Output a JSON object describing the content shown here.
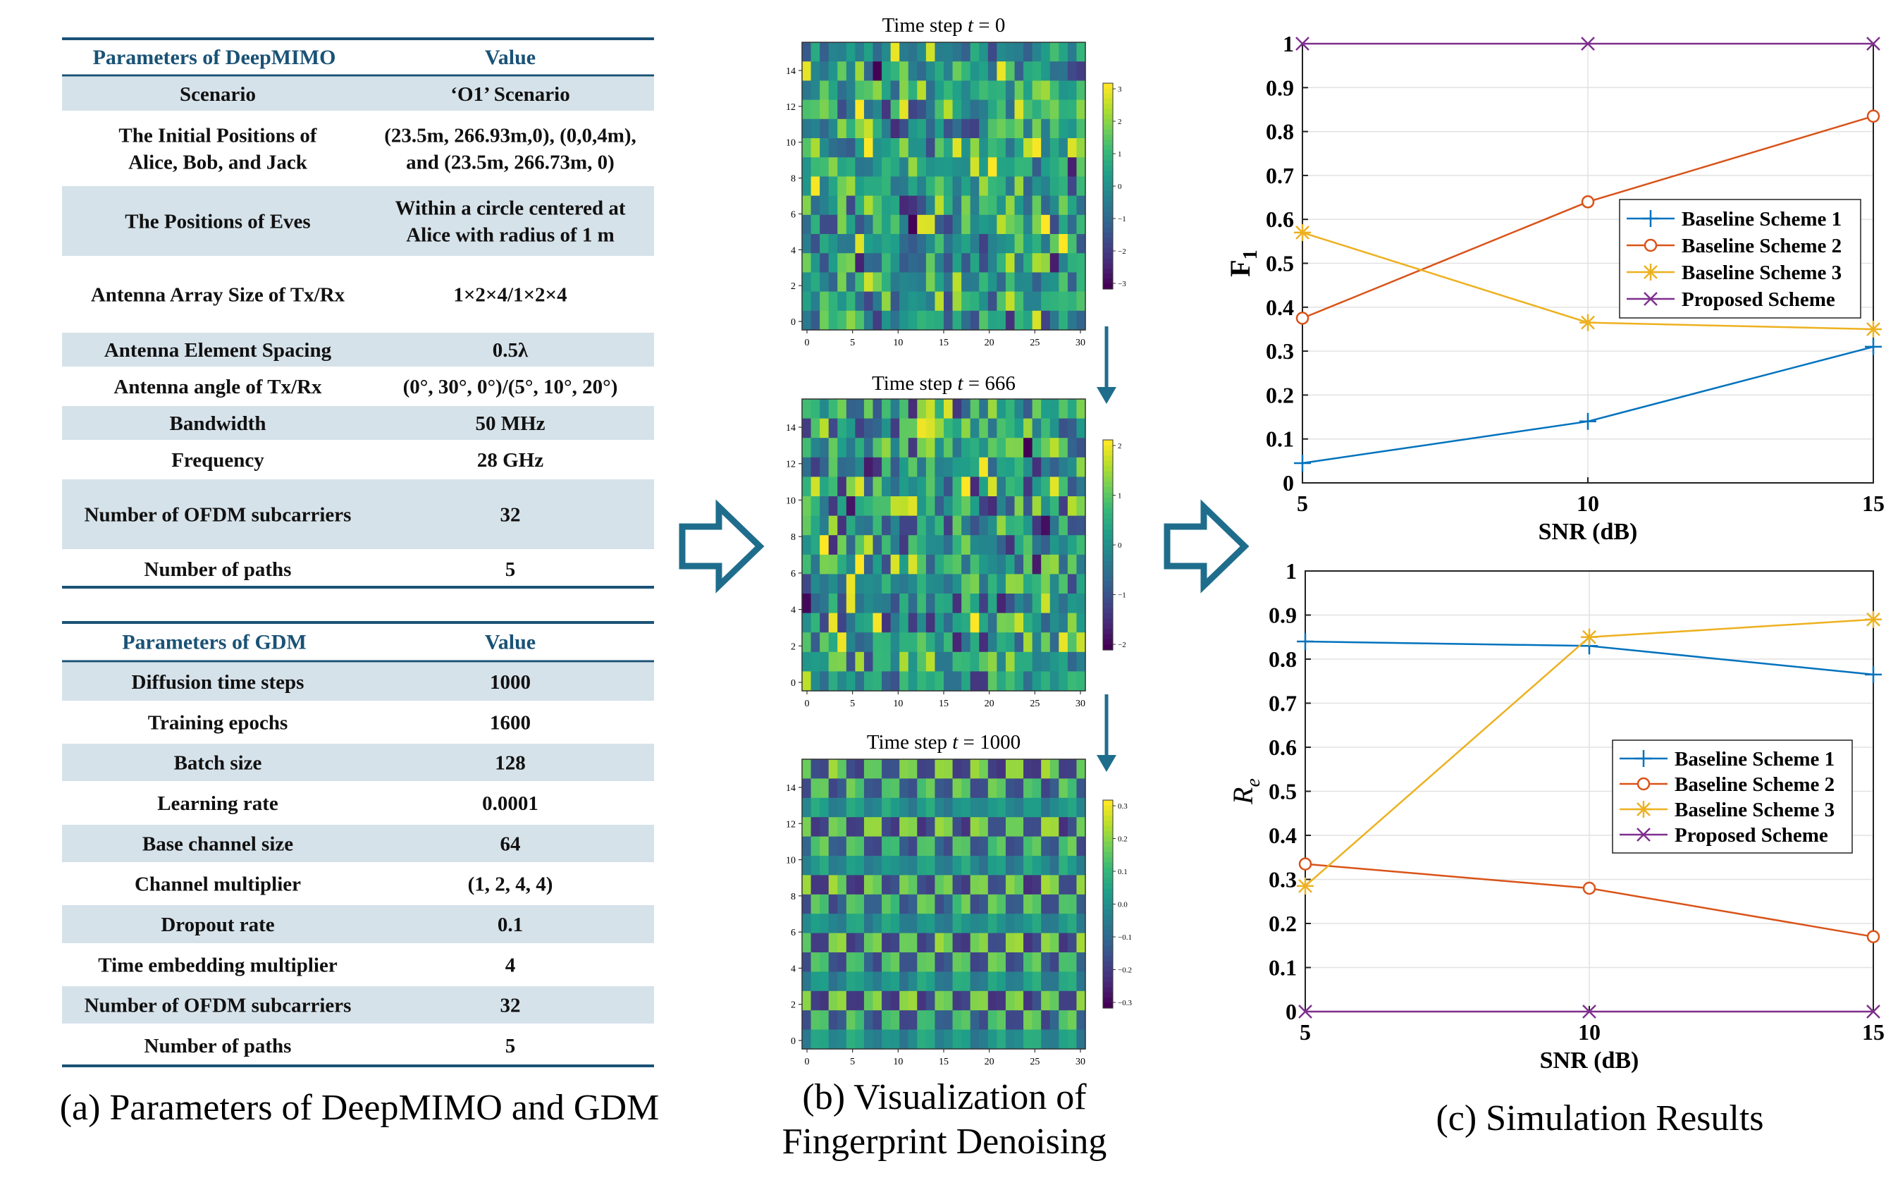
{
  "panel_a": {
    "table1": {
      "header": [
        "Parameters of DeepMIMO",
        "Value"
      ],
      "rows": [
        {
          "param": [
            "Scenario"
          ],
          "value": [
            "‘O1’ Scenario"
          ],
          "shaded": true
        },
        {
          "param": [
            "The Initial Positions of",
            "Alice, Bob, and Jack"
          ],
          "value": [
            "(23.5m, 266.93m,0), (0,0,4m),",
            "and (23.5m, 266.73m, 0)"
          ],
          "shaded": false
        },
        {
          "param": [
            "The Positions of Eves"
          ],
          "value": [
            "Within a circle centered at",
            "Alice with radius of 1 m"
          ],
          "shaded": true
        },
        {
          "param": [
            "Antenna Array Size of Tx/Rx"
          ],
          "value": [
            "1×2×4/1×2×4"
          ],
          "shaded": false
        },
        {
          "param": [
            "Antenna Element Spacing"
          ],
          "value": [
            "0.5λ"
          ],
          "shaded": true
        },
        {
          "param": [
            "Antenna angle of Tx/Rx"
          ],
          "value": [
            "(0°, 30°, 0°)/(5°, 10°, 20°)"
          ],
          "shaded": false
        },
        {
          "param": [
            "Bandwidth"
          ],
          "value": [
            "50 MHz"
          ],
          "shaded": true
        },
        {
          "param": [
            "Frequency"
          ],
          "value": [
            "28 GHz"
          ],
          "shaded": false
        },
        {
          "param": [
            "Number of OFDM subcarriers"
          ],
          "value": [
            "32"
          ],
          "shaded": true
        },
        {
          "param": [
            "Number of paths"
          ],
          "value": [
            "5"
          ],
          "shaded": false
        }
      ]
    },
    "table2": {
      "header": [
        "Parameters of GDM",
        "Value"
      ],
      "rows": [
        {
          "param": [
            "Diffusion time steps"
          ],
          "value": [
            "1000"
          ],
          "shaded": true
        },
        {
          "param": [
            "Training epochs"
          ],
          "value": [
            "1600"
          ],
          "shaded": false
        },
        {
          "param": [
            "Batch size"
          ],
          "value": [
            "128"
          ],
          "shaded": true
        },
        {
          "param": [
            "Learning rate"
          ],
          "value": [
            "0.0001"
          ],
          "shaded": false
        },
        {
          "param": [
            "Base channel size"
          ],
          "value": [
            "64"
          ],
          "shaded": true
        },
        {
          "param": [
            "Channel multiplier"
          ],
          "value": [
            "(1, 2, 4, 4)"
          ],
          "shaded": false
        },
        {
          "param": [
            "Dropout rate"
          ],
          "value": [
            "0.1"
          ],
          "shaded": true
        },
        {
          "param": [
            "Time embedding multiplier"
          ],
          "value": [
            "4"
          ],
          "shaded": false
        },
        {
          "param": [
            "Number of OFDM subcarriers"
          ],
          "value": [
            "32"
          ],
          "shaded": true
        },
        {
          "param": [
            "Number of paths"
          ],
          "value": [
            "5"
          ],
          "shaded": false
        }
      ]
    },
    "caption": "(a) Parameters of DeepMIMO and GDM"
  },
  "panel_b": {
    "caption_line1": "(b) Visualization of",
    "caption_line2": "Fingerprint Denoising",
    "heatmaps": [
      {
        "title_prefix": "Time step ",
        "title_var": "t",
        "title_suffix": " = 0",
        "yticks": [
          "14",
          "12",
          "10",
          "8",
          "6",
          "4",
          "2",
          "0"
        ],
        "xticks": [
          "0",
          "5",
          "10",
          "15",
          "20",
          "25",
          "30"
        ],
        "cbar_ticks": [
          "3",
          "2",
          "1",
          "0",
          "−1",
          "−2",
          "−3"
        ],
        "pattern": "noise",
        "seed": 11
      },
      {
        "title_prefix": "Time step ",
        "title_var": "t",
        "title_suffix": " = 666",
        "yticks": [
          "14",
          "12",
          "10",
          "8",
          "6",
          "4",
          "2",
          "0"
        ],
        "xticks": [
          "0",
          "5",
          "10",
          "15",
          "20",
          "25",
          "30"
        ],
        "cbar_ticks": [
          "2",
          "1",
          "0",
          "−1",
          "−2"
        ],
        "pattern": "noise",
        "seed": 29
      },
      {
        "title_prefix": "Time step ",
        "title_var": "t",
        "title_suffix": " = 1000",
        "yticks": [
          "14",
          "12",
          "10",
          "8",
          "6",
          "4",
          "2",
          "0"
        ],
        "xticks": [
          "0",
          "5",
          "10",
          "15",
          "20",
          "25",
          "30"
        ],
        "cbar_ticks": [
          "0.3",
          "0.2",
          "0.1",
          "0.0",
          "−0.1",
          "−0.2",
          "−0.3"
        ],
        "pattern": "structured",
        "seed": 7
      }
    ],
    "colors": {
      "arrow": "#1f6d8c"
    }
  },
  "panel_c": {
    "caption": "(c) Simulation Results",
    "colors": {
      "s1": "#0072bd",
      "s2": "#d95319",
      "s3": "#edb120",
      "s4": "#7e2f8e",
      "arrow": "#1f6d8c"
    }
  },
  "chart_data": [
    {
      "type": "line",
      "title": "",
      "xlabel": "SNR (dB)",
      "ylabel": "F1",
      "x": [
        5,
        10,
        15
      ],
      "xticks": [
        "5",
        "10",
        "15"
      ],
      "yticks": [
        "0",
        "0.1",
        "0.2",
        "0.3",
        "0.4",
        "0.5",
        "0.6",
        "0.7",
        "0.8",
        "0.9",
        "1"
      ],
      "xlim": [
        5,
        15
      ],
      "ylim": [
        0,
        1
      ],
      "grid": true,
      "legend_position": "right-middle",
      "series": [
        {
          "name": "Baseline Scheme 1",
          "values": [
            0.045,
            0.14,
            0.31
          ],
          "marker": "plus"
        },
        {
          "name": "Baseline Scheme 2",
          "values": [
            0.375,
            0.64,
            0.835
          ],
          "marker": "circle"
        },
        {
          "name": "Baseline Scheme 3",
          "values": [
            0.57,
            0.365,
            0.35
          ],
          "marker": "asterisk"
        },
        {
          "name": "Proposed Scheme",
          "values": [
            1.0,
            1.0,
            1.0
          ],
          "marker": "cross"
        }
      ]
    },
    {
      "type": "line",
      "title": "",
      "xlabel": "SNR (dB)",
      "ylabel": "Re",
      "x": [
        5,
        10,
        15
      ],
      "xticks": [
        "5",
        "10",
        "15"
      ],
      "yticks": [
        "0",
        "0.1",
        "0.2",
        "0.3",
        "0.4",
        "0.5",
        "0.6",
        "0.7",
        "0.8",
        "0.9",
        "1"
      ],
      "xlim": [
        5,
        15
      ],
      "ylim": [
        0,
        1
      ],
      "grid": true,
      "legend_position": "right-middle",
      "series": [
        {
          "name": "Baseline Scheme 1",
          "values": [
            0.84,
            0.83,
            0.765
          ],
          "marker": "plus"
        },
        {
          "name": "Baseline Scheme 2",
          "values": [
            0.335,
            0.28,
            0.17
          ],
          "marker": "circle"
        },
        {
          "name": "Baseline Scheme 3",
          "values": [
            0.285,
            0.85,
            0.89
          ],
          "marker": "asterisk"
        },
        {
          "name": "Proposed Scheme",
          "values": [
            0.0,
            0.0,
            0.0
          ],
          "marker": "cross"
        }
      ]
    }
  ]
}
